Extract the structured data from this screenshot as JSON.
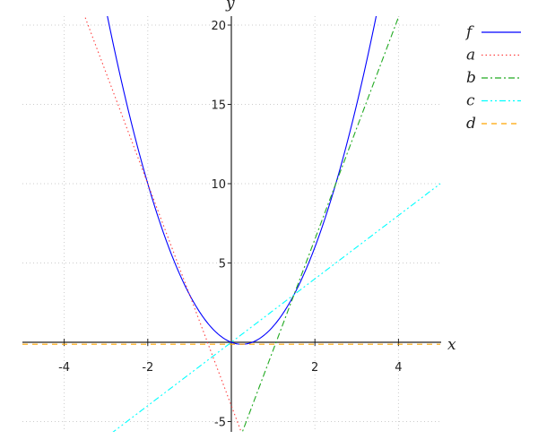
{
  "chart_data": {
    "type": "line",
    "xlabel": "x",
    "ylabel": "y",
    "xlim": [
      -5,
      5
    ],
    "ylim": [
      -5.6,
      20.5
    ],
    "xticks": [
      -4,
      -2,
      2,
      4
    ],
    "yticks": [
      -5,
      5,
      10,
      15,
      20
    ],
    "grid": true,
    "legend_placement": "top-right",
    "series": [
      {
        "name": "f",
        "expr": "2x^2 - x",
        "coef": [
          0,
          -1,
          2
        ],
        "color": "#0000ff",
        "dash": "solid"
      },
      {
        "name": "a",
        "expr": "-7x - 4",
        "coef": [
          -4,
          -7,
          0
        ],
        "color": "#ff4040",
        "dash": "dotted"
      },
      {
        "name": "b",
        "expr": "7x - 7.5",
        "coef": [
          -7.5,
          7,
          0
        ],
        "color": "#22aa22",
        "dash": "dashdot"
      },
      {
        "name": "c",
        "expr": "2x",
        "coef": [
          0,
          2,
          0
        ],
        "color": "#00ffff",
        "dash": "dashdotdot"
      },
      {
        "name": "d",
        "expr": "-0.125",
        "coef": [
          -0.125,
          0,
          0
        ],
        "color": "#ffa500",
        "dash": "dashed"
      }
    ]
  }
}
